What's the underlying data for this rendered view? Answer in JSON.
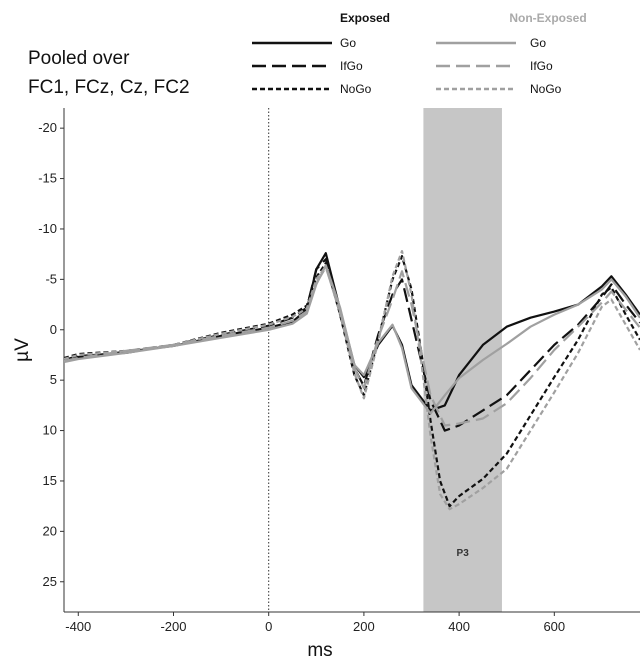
{
  "chart_data": {
    "type": "line",
    "title": "",
    "annotation_lines": [
      "Pooled over",
      "FC1, FCz, Cz, FC2"
    ],
    "xlabel": "ms",
    "ylabel": "µV",
    "xlim": [
      -430,
      780
    ],
    "ylim": [
      -22,
      28
    ],
    "y_inverted": true,
    "x_ticks": [
      -400,
      -200,
      0,
      200,
      400,
      600
    ],
    "y_ticks": [
      -20,
      -15,
      -10,
      -5,
      0,
      5,
      10,
      15,
      20,
      25
    ],
    "grid": false,
    "shaded_band": {
      "x_range": [
        325,
        490
      ],
      "label": "P3"
    },
    "stimulus_marker_x": 0,
    "legend": {
      "placement": "top",
      "groups": [
        {
          "title": "Exposed",
          "color": "#111111",
          "items": [
            "Go",
            "IfGo",
            "NoGo"
          ]
        },
        {
          "title": "Non-Exposed",
          "color": "#a0a0a0",
          "items": [
            "Go",
            "IfGo",
            "NoGo"
          ]
        }
      ]
    },
    "series": [
      {
        "name": "Go",
        "group": "Exposed",
        "style": "solid",
        "color": "#111111",
        "x": [
          -430,
          -400,
          -300,
          -200,
          -100,
          0,
          50,
          80,
          100,
          120,
          150,
          180,
          200,
          230,
          260,
          280,
          300,
          340,
          370,
          400,
          450,
          500,
          550,
          600,
          650,
          700,
          720,
          750,
          780
        ],
        "y": [
          3,
          2.7,
          2.2,
          1.6,
          0.6,
          -0.2,
          -0.8,
          -2,
          -6,
          -7.6,
          -2,
          3.5,
          4.7,
          1.5,
          -0.4,
          1.5,
          5.5,
          8,
          7.5,
          4.5,
          1.5,
          -0.3,
          -1.2,
          -1.8,
          -2.5,
          -4.3,
          -5.3,
          -3.5,
          -1.5
        ]
      },
      {
        "name": "IfGo",
        "group": "Exposed",
        "style": "long-dash",
        "color": "#111111",
        "x": [
          -430,
          -400,
          -300,
          -200,
          -100,
          0,
          50,
          80,
          100,
          120,
          150,
          180,
          200,
          230,
          260,
          280,
          300,
          340,
          370,
          400,
          450,
          500,
          550,
          600,
          650,
          700,
          720,
          750,
          780
        ],
        "y": [
          3,
          2.6,
          2.3,
          1.5,
          0.5,
          -0.4,
          -1.2,
          -2.2,
          -6,
          -7,
          -1.5,
          3.8,
          5.6,
          0.5,
          -3.5,
          -5,
          -1,
          7,
          10,
          9.5,
          8,
          6.5,
          4,
          1.5,
          -0.5,
          -3.2,
          -4.5,
          -2.5,
          -0.7
        ]
      },
      {
        "name": "NoGo",
        "group": "Exposed",
        "style": "short-dash",
        "color": "#111111",
        "x": [
          -430,
          -400,
          -300,
          -200,
          -100,
          0,
          50,
          80,
          100,
          120,
          150,
          180,
          200,
          230,
          260,
          280,
          300,
          320,
          340,
          360,
          380,
          400,
          450,
          500,
          550,
          600,
          650,
          700,
          720,
          750,
          780
        ],
        "y": [
          2.8,
          2.4,
          2.1,
          1.5,
          0.3,
          -0.6,
          -1.5,
          -2.4,
          -5.2,
          -6.6,
          -1.5,
          4.5,
          6.5,
          1,
          -5,
          -7.3,
          -4,
          2,
          9,
          15,
          17.5,
          16.5,
          14.8,
          12.3,
          8.5,
          4.7,
          1,
          -3.5,
          -4.2,
          -1.5,
          1
        ]
      },
      {
        "name": "Go",
        "group": "Non-Exposed",
        "style": "solid",
        "color": "#a0a0a0",
        "x": [
          -430,
          -400,
          -300,
          -200,
          -100,
          0,
          50,
          80,
          100,
          120,
          150,
          180,
          200,
          230,
          260,
          280,
          300,
          340,
          370,
          400,
          450,
          500,
          550,
          600,
          650,
          700,
          720,
          750,
          780
        ],
        "y": [
          3.2,
          2.9,
          2.3,
          1.6,
          0.8,
          0,
          -0.6,
          -1.6,
          -4.5,
          -6.4,
          -2.2,
          3.5,
          4.5,
          1.3,
          -0.5,
          1.8,
          5.8,
          8.3,
          6.5,
          4.8,
          3,
          1.4,
          -0.3,
          -1.5,
          -2.5,
          -4,
          -5,
          -3.3,
          -1.2
        ]
      },
      {
        "name": "IfGo",
        "group": "Non-Exposed",
        "style": "long-dash",
        "color": "#a0a0a0",
        "x": [
          -430,
          -400,
          -300,
          -200,
          -100,
          0,
          50,
          80,
          100,
          120,
          150,
          180,
          200,
          230,
          260,
          280,
          300,
          340,
          370,
          400,
          450,
          500,
          550,
          600,
          650,
          700,
          720,
          750,
          780
        ],
        "y": [
          3.1,
          2.8,
          2.1,
          1.5,
          0.6,
          -0.2,
          -0.9,
          -1.8,
          -4.6,
          -6.2,
          -1.8,
          3.8,
          5.8,
          0.8,
          -3,
          -5.8,
          -2.5,
          6.5,
          9.5,
          9.3,
          8.8,
          7.3,
          4.8,
          2,
          -0.3,
          -2.7,
          -3.8,
          -2,
          -0.2
        ]
      },
      {
        "name": "NoGo",
        "group": "Non-Exposed",
        "style": "short-dash",
        "color": "#a0a0a0",
        "x": [
          -430,
          -400,
          -300,
          -200,
          -100,
          0,
          50,
          80,
          100,
          120,
          150,
          180,
          200,
          230,
          260,
          280,
          300,
          320,
          340,
          360,
          380,
          400,
          450,
          500,
          550,
          600,
          650,
          700,
          720,
          750,
          780
        ],
        "y": [
          2.9,
          2.5,
          2.1,
          1.5,
          0.4,
          -0.5,
          -1.3,
          -2.1,
          -5,
          -6.3,
          -1.6,
          4.3,
          6.8,
          1.2,
          -5.3,
          -7.8,
          -3.5,
          3,
          10.5,
          16.3,
          17.8,
          17.3,
          15.7,
          13.8,
          10,
          6.2,
          2.3,
          -2.3,
          -3,
          -0.5,
          2
        ]
      }
    ]
  }
}
